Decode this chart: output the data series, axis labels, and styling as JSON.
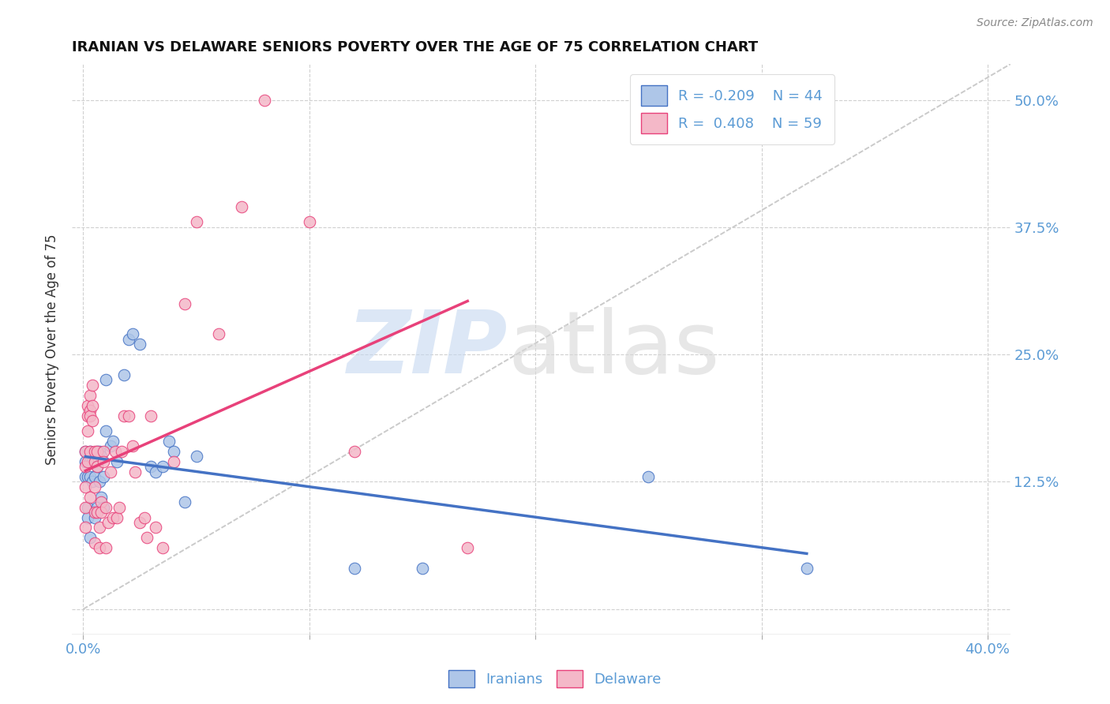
{
  "title": "IRANIAN VS DELAWARE SENIORS POVERTY OVER THE AGE OF 75 CORRELATION CHART",
  "source": "Source: ZipAtlas.com",
  "ylabel": "Seniors Poverty Over the Age of 75",
  "xlim": [
    -0.005,
    0.41
  ],
  "ylim": [
    -0.025,
    0.535
  ],
  "xticks": [
    0.0,
    0.1,
    0.2,
    0.3,
    0.4
  ],
  "xtick_labels": [
    "0.0%",
    "",
    "",
    "",
    "40.0%"
  ],
  "ytick_positions": [
    0.0,
    0.125,
    0.25,
    0.375,
    0.5
  ],
  "ytick_labels": [
    "",
    "12.5%",
    "25.0%",
    "37.5%",
    "50.0%"
  ],
  "legend_R_iranians": "-0.209",
  "legend_N_iranians": "44",
  "legend_R_delaware": "0.408",
  "legend_N_delaware": "59",
  "iranians_color": "#aec6e8",
  "delaware_color": "#f4b8c8",
  "iranians_line_color": "#4472c4",
  "delaware_line_color": "#e8417a",
  "iranians_x": [
    0.001,
    0.001,
    0.001,
    0.002,
    0.002,
    0.002,
    0.003,
    0.003,
    0.003,
    0.003,
    0.004,
    0.004,
    0.005,
    0.005,
    0.005,
    0.006,
    0.006,
    0.006,
    0.007,
    0.007,
    0.008,
    0.008,
    0.009,
    0.009,
    0.01,
    0.01,
    0.012,
    0.013,
    0.015,
    0.018,
    0.02,
    0.022,
    0.025,
    0.03,
    0.032,
    0.035,
    0.038,
    0.04,
    0.045,
    0.05,
    0.12,
    0.15,
    0.25,
    0.32
  ],
  "iranians_y": [
    0.155,
    0.145,
    0.13,
    0.13,
    0.1,
    0.09,
    0.155,
    0.145,
    0.13,
    0.07,
    0.145,
    0.125,
    0.15,
    0.13,
    0.09,
    0.155,
    0.14,
    0.1,
    0.155,
    0.125,
    0.15,
    0.11,
    0.13,
    0.1,
    0.225,
    0.175,
    0.16,
    0.165,
    0.145,
    0.23,
    0.265,
    0.27,
    0.26,
    0.14,
    0.135,
    0.14,
    0.165,
    0.155,
    0.105,
    0.15,
    0.04,
    0.04,
    0.13,
    0.04
  ],
  "delaware_x": [
    0.001,
    0.001,
    0.001,
    0.001,
    0.001,
    0.002,
    0.002,
    0.002,
    0.002,
    0.003,
    0.003,
    0.003,
    0.003,
    0.003,
    0.004,
    0.004,
    0.004,
    0.005,
    0.005,
    0.005,
    0.005,
    0.005,
    0.006,
    0.006,
    0.006,
    0.007,
    0.007,
    0.008,
    0.008,
    0.009,
    0.009,
    0.01,
    0.01,
    0.011,
    0.012,
    0.013,
    0.014,
    0.015,
    0.016,
    0.017,
    0.018,
    0.02,
    0.022,
    0.023,
    0.025,
    0.027,
    0.028,
    0.03,
    0.032,
    0.035,
    0.04,
    0.045,
    0.05,
    0.06,
    0.07,
    0.08,
    0.1,
    0.12,
    0.17
  ],
  "delaware_y": [
    0.155,
    0.14,
    0.12,
    0.1,
    0.08,
    0.2,
    0.19,
    0.175,
    0.145,
    0.21,
    0.195,
    0.19,
    0.155,
    0.11,
    0.22,
    0.2,
    0.185,
    0.155,
    0.145,
    0.12,
    0.095,
    0.065,
    0.155,
    0.14,
    0.095,
    0.08,
    0.06,
    0.105,
    0.095,
    0.155,
    0.145,
    0.1,
    0.06,
    0.085,
    0.135,
    0.09,
    0.155,
    0.09,
    0.1,
    0.155,
    0.19,
    0.19,
    0.16,
    0.135,
    0.085,
    0.09,
    0.07,
    0.19,
    0.08,
    0.06,
    0.145,
    0.3,
    0.38,
    0.27,
    0.395,
    0.5,
    0.38,
    0.155,
    0.06
  ]
}
